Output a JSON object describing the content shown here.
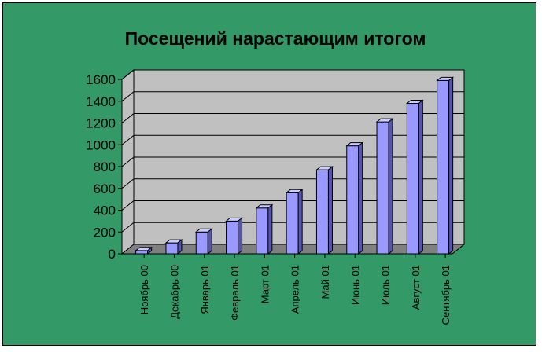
{
  "chart_data": {
    "type": "bar",
    "title": "Посещений нарастающим итогом",
    "categories": [
      "Ноябрь 00",
      "Декабрь 00",
      "Январь 01",
      "Февраль 01",
      "Март 01",
      "Апрель 01",
      "Май 01",
      "Июнь 01",
      "Июль 01",
      "Август 01",
      "Сентябрь 01"
    ],
    "values": [
      30,
      100,
      200,
      300,
      420,
      560,
      770,
      990,
      1210,
      1380,
      1590
    ],
    "ylim": [
      0,
      1600
    ],
    "yticks": [
      "0",
      "200",
      "400",
      "600",
      "800",
      "1000",
      "1200",
      "1400",
      "1600"
    ],
    "grid": true,
    "legend": "none",
    "colors": {
      "background": "#339966",
      "plot_wall": "#c0c0c0",
      "floor": "#808080",
      "bar_front": "#9999ff",
      "bar_top": "#ccccff",
      "bar_side": "#5555b0"
    }
  }
}
